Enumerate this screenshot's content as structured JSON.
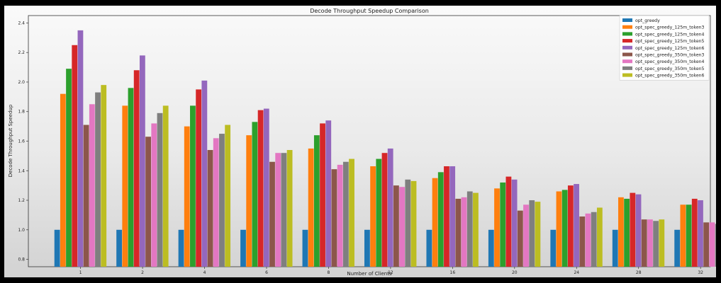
{
  "chart_data": {
    "type": "bar",
    "title": "Decode Throughput Speedup Comparison",
    "xlabel": "Number of Clients",
    "ylabel": "Decode Throughput Speedup",
    "categories": [
      "1",
      "2",
      "4",
      "6",
      "8",
      "12",
      "16",
      "20",
      "24",
      "28",
      "32"
    ],
    "ylim": [
      0.75,
      2.45
    ],
    "yticks": [
      0.8,
      1.0,
      1.2,
      1.4,
      1.6,
      1.8,
      2.0,
      2.2,
      2.4
    ],
    "ytick_labels": [
      "0.8",
      "1.0",
      "1.2",
      "1.4",
      "1.6",
      "1.8",
      "2.0",
      "2.2",
      "2.4"
    ],
    "grid": false,
    "legend_position": "top-right",
    "series": [
      {
        "name": "opt_greedy",
        "color": "#1f77b4",
        "values": [
          1.0,
          1.0,
          1.0,
          1.0,
          1.0,
          1.0,
          1.0,
          1.0,
          1.0,
          1.0,
          1.0
        ]
      },
      {
        "name": "opt_spec_greedy_125m_token3",
        "color": "#ff7f0e",
        "values": [
          1.92,
          1.84,
          1.7,
          1.64,
          1.55,
          1.43,
          1.35,
          1.28,
          1.26,
          1.22,
          1.17
        ]
      },
      {
        "name": "opt_spec_greedy_125m_token4",
        "color": "#2ca02c",
        "values": [
          2.09,
          1.96,
          1.84,
          1.73,
          1.64,
          1.48,
          1.39,
          1.32,
          1.27,
          1.21,
          1.17
        ]
      },
      {
        "name": "opt_spec_greedy_125m_token5",
        "color": "#d62728",
        "values": [
          2.25,
          2.08,
          1.95,
          1.81,
          1.72,
          1.52,
          1.43,
          1.36,
          1.3,
          1.25,
          1.21
        ]
      },
      {
        "name": "opt_spec_greedy_125m_token6",
        "color": "#9467bd",
        "values": [
          2.35,
          2.18,
          2.01,
          1.82,
          1.74,
          1.55,
          1.43,
          1.34,
          1.31,
          1.24,
          1.2
        ]
      },
      {
        "name": "opt_spec_greedy_350m_token3",
        "color": "#8c564b",
        "values": [
          1.71,
          1.63,
          1.54,
          1.46,
          1.41,
          1.3,
          1.21,
          1.13,
          1.09,
          1.07,
          1.05
        ]
      },
      {
        "name": "opt_spec_greedy_350m_token4",
        "color": "#e377c2",
        "values": [
          1.85,
          1.72,
          1.62,
          1.52,
          1.44,
          1.29,
          1.22,
          1.17,
          1.11,
          1.07,
          1.05
        ]
      },
      {
        "name": "opt_spec_greedy_350m_token5",
        "color": "#7f7f7f",
        "values": [
          1.93,
          1.79,
          1.65,
          1.52,
          1.46,
          1.34,
          1.26,
          1.2,
          1.12,
          1.06,
          1.04
        ]
      },
      {
        "name": "opt_spec_greedy_350m_token6",
        "color": "#bcbd22",
        "values": [
          1.98,
          1.84,
          1.71,
          1.54,
          1.48,
          1.33,
          1.25,
          1.19,
          1.15,
          1.07,
          1.01
        ]
      }
    ]
  }
}
